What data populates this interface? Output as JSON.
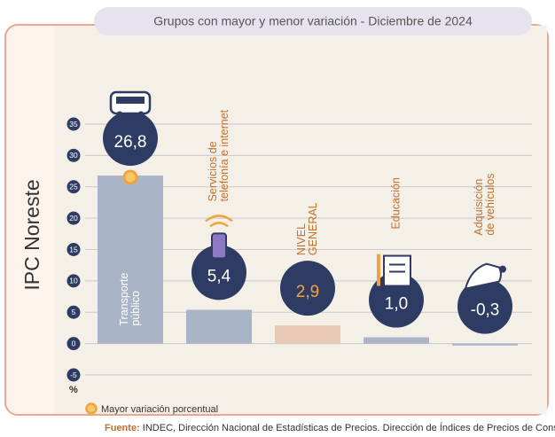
{
  "panel_title": "IPC Noreste",
  "chart_data": {
    "type": "bar",
    "title": "Grupos con mayor y menor variación - Diciembre de 2024",
    "categories": [
      [
        "Transporte",
        "público"
      ],
      [
        "Servicios de",
        "telefonía e internet"
      ],
      [
        "NIVEL",
        "GENERAL"
      ],
      [
        "Educación"
      ],
      [
        "Adquisición",
        "de vehículos"
      ]
    ],
    "values": [
      26.8,
      5.4,
      2.9,
      1.0,
      -0.3
    ],
    "value_labels": [
      "26,8",
      "5,4",
      "2,9",
      "1,0",
      "-0,3"
    ],
    "colors": [
      "#a9b4c6",
      "#a9b4c6",
      "#e8c9b5",
      "#a9b4c6",
      "#a9b4c6"
    ],
    "value_label_colors": [
      "#ffffff",
      "#ffffff",
      "#f0a340",
      "#ffffff",
      "#ffffff"
    ],
    "highlight": 0,
    "ylim": [
      -5,
      35
    ],
    "yticks": [
      -5,
      0,
      5,
      10,
      15,
      20,
      25,
      30,
      35
    ],
    "y_unit": "%",
    "grid": true,
    "legend": "Mayor variación porcentual",
    "source_label": "Fuente:",
    "source": "INDEC, Dirección Nacional de Estadísticas de Precios. Dirección de Índices de Precios de Consumo."
  }
}
